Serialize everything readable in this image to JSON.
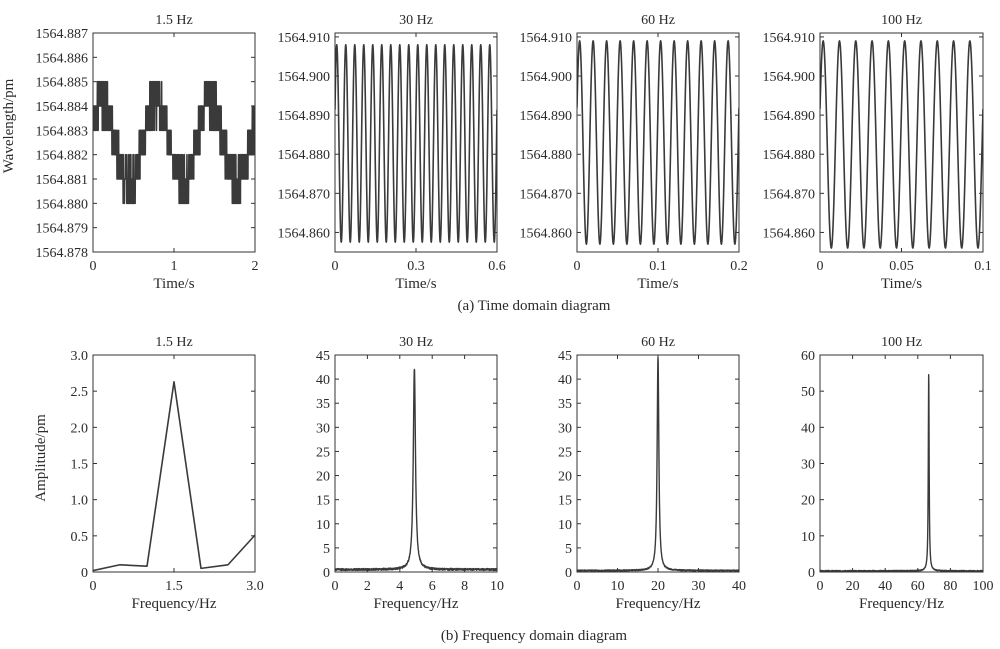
{
  "panels": {
    "time_domain": {
      "caption": "(a) Time domain diagram",
      "ylabel": "Wavelength/pm"
    },
    "frequency_domain": {
      "caption": "(b) Frequency domain diagram",
      "ylabel": "Amplitude/pm"
    }
  },
  "chart_data": [
    {
      "type": "line",
      "group": "time",
      "title": "1.5 Hz",
      "xlabel": "Time/s",
      "ylabel": "Wavelength/pm",
      "xlim": [
        0,
        2
      ],
      "ylim": [
        1564.878,
        1564.887
      ],
      "xticks": [
        "0",
        "1",
        "2"
      ],
      "yticks": [
        "1564.878",
        "1564.879",
        "1564.880",
        "1564.881",
        "1564.882",
        "1564.883",
        "1564.884",
        "1564.885",
        "1564.886",
        "1564.887"
      ],
      "signal": {
        "kind": "quantized-sine",
        "frequency_hz": 1.5,
        "center": 1564.8825,
        "amplitude": 0.0017,
        "min_observed": 1564.879,
        "max_observed": 1564.886,
        "step": 0.001
      }
    },
    {
      "type": "line",
      "group": "time",
      "title": "30 Hz",
      "xlabel": "Time/s",
      "ylabel": "",
      "xlim": [
        0,
        0.6
      ],
      "ylim": [
        1564.855,
        1564.911
      ],
      "xticks": [
        "0",
        "0.3",
        "0.6"
      ],
      "yticks": [
        "1564.860",
        "1564.870",
        "1564.880",
        "1564.890",
        "1564.900",
        "1564.910"
      ],
      "signal": {
        "kind": "sine",
        "frequency_hz": 30,
        "min": 1564.8575,
        "max": 1564.908
      }
    },
    {
      "type": "line",
      "group": "time",
      "title": "60 Hz",
      "xlabel": "Time/s",
      "ylabel": "",
      "xlim": [
        0,
        0.2
      ],
      "ylim": [
        1564.855,
        1564.911
      ],
      "xticks": [
        "0",
        "0.1",
        "0.2"
      ],
      "yticks": [
        "1564.860",
        "1564.870",
        "1564.880",
        "1564.890",
        "1564.900",
        "1564.910"
      ],
      "signal": {
        "kind": "sine",
        "frequency_hz": 60,
        "min": 1564.857,
        "max": 1564.909
      }
    },
    {
      "type": "line",
      "group": "time",
      "title": "100 Hz",
      "xlabel": "Time/s",
      "ylabel": "",
      "xlim": [
        0,
        0.1
      ],
      "ylim": [
        1564.855,
        1564.911
      ],
      "xticks": [
        "0",
        "0.05",
        "0.1"
      ],
      "yticks": [
        "1564.860",
        "1564.870",
        "1564.880",
        "1564.890",
        "1564.900",
        "1564.910"
      ],
      "signal": {
        "kind": "sine",
        "frequency_hz": 100,
        "min": 1564.856,
        "max": 1564.909
      }
    },
    {
      "type": "line",
      "group": "frequency",
      "title": "1.5 Hz",
      "xlabel": "Frequency/Hz",
      "ylabel": "Amplitude/pm",
      "xlim": [
        0,
        3.0
      ],
      "ylim": [
        0,
        3.0
      ],
      "xticks": [
        "0",
        "1.5",
        "3.0"
      ],
      "xtick_values": [
        0,
        1.5,
        3.0
      ],
      "yticks": [
        "0",
        "0.5",
        "1.0",
        "1.5",
        "2.0",
        "2.5",
        "3.0"
      ],
      "x": [
        0,
        0.5,
        1.0,
        1.5,
        2.0,
        2.5,
        3.0
      ],
      "y": [
        0.02,
        0.1,
        0.08,
        2.63,
        0.05,
        0.1,
        0.51
      ]
    },
    {
      "type": "line",
      "group": "frequency",
      "title": "30 Hz",
      "xlabel": "Frequency/Hz",
      "ylabel": "",
      "xlim": [
        0,
        10
      ],
      "ylim": [
        0,
        45
      ],
      "xticks": [
        "0",
        "2",
        "4",
        "6",
        "8",
        "10"
      ],
      "yticks": [
        "0",
        "5",
        "10",
        "15",
        "20",
        "25",
        "30",
        "35",
        "40",
        "45"
      ],
      "peak": {
        "x": 4.9,
        "y": 42,
        "baseline": 0.5,
        "width": 0.08
      }
    },
    {
      "type": "line",
      "group": "frequency",
      "title": "60 Hz",
      "xlabel": "Frequency/Hz",
      "ylabel": "",
      "xlim": [
        0,
        40
      ],
      "ylim": [
        0,
        45
      ],
      "xticks": [
        "0",
        "10",
        "20",
        "30",
        "40"
      ],
      "yticks": [
        "0",
        "5",
        "10",
        "15",
        "20",
        "25",
        "30",
        "35",
        "40",
        "45"
      ],
      "peak": {
        "x": 20,
        "y": 44.5,
        "baseline": 0.3,
        "width": 0.25
      }
    },
    {
      "type": "line",
      "group": "frequency",
      "title": "100 Hz",
      "xlabel": "Frequency/Hz",
      "ylabel": "",
      "xlim": [
        0,
        100
      ],
      "ylim": [
        0,
        60
      ],
      "xticks": [
        "0",
        "20",
        "40",
        "60",
        "80",
        "100"
      ],
      "yticks": [
        "0",
        "10",
        "20",
        "30",
        "40",
        "50",
        "60"
      ],
      "peak": {
        "x": 66.7,
        "y": 55,
        "baseline": 0.3,
        "width": 0.3
      }
    }
  ]
}
